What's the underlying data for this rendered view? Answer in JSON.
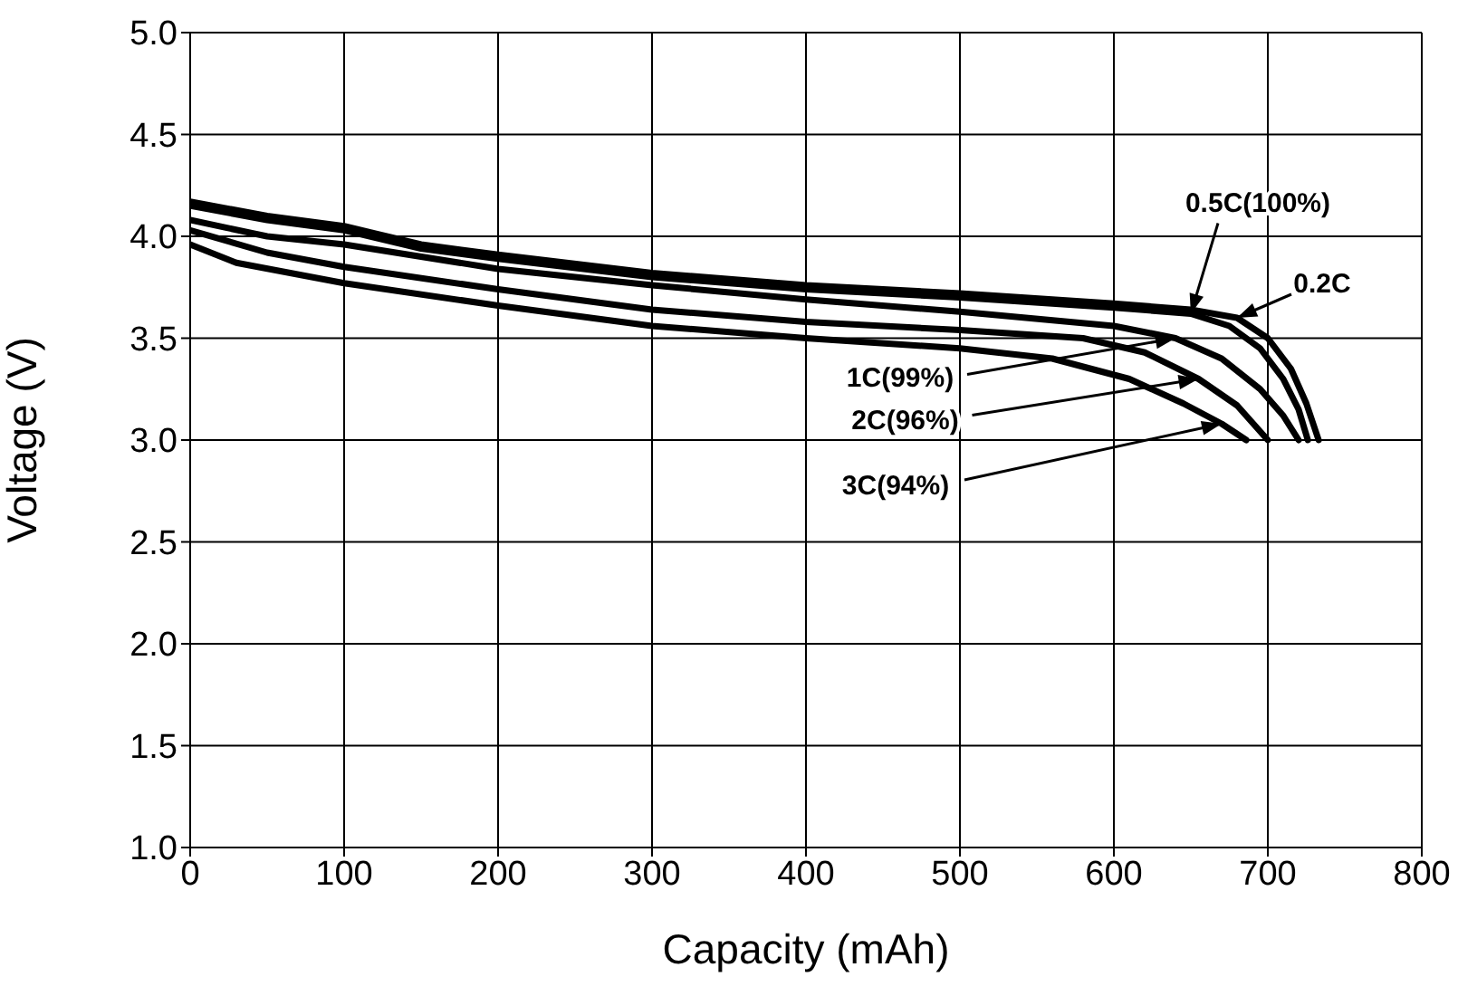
{
  "chart_data": {
    "type": "line",
    "xlabel": "Capacity (mAh)",
    "ylabel": "Voltage (V)",
    "xlim": [
      0,
      800
    ],
    "xticks": [
      0,
      100,
      200,
      300,
      400,
      500,
      600,
      700,
      800
    ],
    "ylim": [
      1,
      5
    ],
    "yticks": [
      {
        "value": 1,
        "label": "1.0"
      },
      1.5,
      {
        "value": 2,
        "label": "2.0"
      },
      2.5,
      {
        "value": 3,
        "label": "3.0"
      },
      3.5,
      {
        "value": 4,
        "label": "4.0"
      },
      4.5,
      {
        "value": 5,
        "label": "5.0"
      }
    ],
    "grid": true,
    "series": [
      {
        "color": "#000000",
        "x": [
          0,
          50,
          100,
          150,
          200,
          300,
          400,
          500,
          600,
          650,
          680,
          700,
          715,
          725,
          733
        ],
        "values": [
          4.17,
          4.1,
          4.05,
          3.96,
          3.91,
          3.82,
          3.76,
          3.72,
          3.67,
          3.64,
          3.6,
          3.5,
          3.35,
          3.18,
          3.0
        ]
      },
      {
        "color": "#000000",
        "x": [
          0,
          50,
          100,
          150,
          200,
          300,
          400,
          500,
          600,
          650,
          675,
          695,
          710,
          720,
          726
        ],
        "values": [
          4.15,
          4.08,
          4.03,
          3.94,
          3.89,
          3.8,
          3.74,
          3.7,
          3.65,
          3.62,
          3.56,
          3.45,
          3.3,
          3.15,
          3.0
        ]
      },
      {
        "color": "#000000",
        "x": [
          0,
          50,
          100,
          200,
          300,
          400,
          500,
          600,
          640,
          670,
          695,
          710,
          720
        ],
        "values": [
          4.08,
          4.0,
          3.96,
          3.84,
          3.76,
          3.69,
          3.63,
          3.56,
          3.5,
          3.4,
          3.25,
          3.12,
          3.0
        ]
      },
      {
        "color": "#000000",
        "x": [
          0,
          50,
          100,
          200,
          300,
          400,
          500,
          580,
          620,
          655,
          680,
          700
        ],
        "values": [
          4.03,
          3.92,
          3.85,
          3.74,
          3.64,
          3.58,
          3.54,
          3.5,
          3.43,
          3.3,
          3.17,
          3.0
        ]
      },
      {
        "color": "#000000",
        "x": [
          0,
          30,
          100,
          200,
          300,
          400,
          500,
          560,
          610,
          645,
          670,
          686
        ],
        "values": [
          3.96,
          3.87,
          3.77,
          3.66,
          3.56,
          3.5,
          3.45,
          3.4,
          3.3,
          3.18,
          3.08,
          3.0
        ]
      }
    ],
    "annotations": [
      {
        "text": "0.5C(100%)",
        "x": 650,
        "y": 3.62
      },
      {
        "text": "0.2C",
        "x": 680,
        "y": 3.6
      },
      {
        "text": "1C(99%)",
        "x": 640,
        "y": 3.5
      },
      {
        "text": "2C(96%)",
        "x": 655,
        "y": 3.3
      },
      {
        "text": "3C(94%)",
        "x": 670,
        "y": 3.08
      }
    ]
  }
}
